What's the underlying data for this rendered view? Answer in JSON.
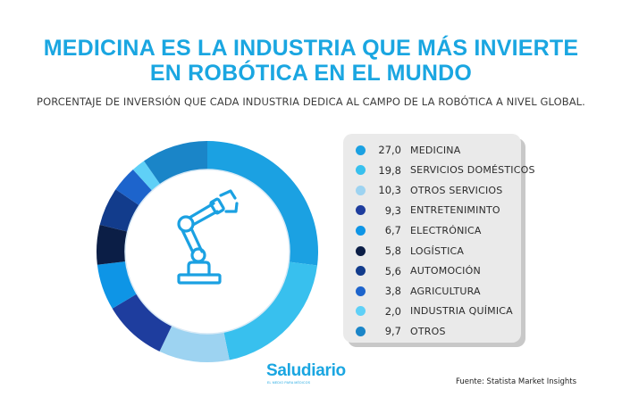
{
  "title_line1": "MEDICINA ES LA INDUSTRIA QUE MÁS INVIERTE",
  "title_line2": "EN ROBÓTICA EN EL MUNDO",
  "subtitle": "PORCENTAJE DE INVERSIÓN QUE CADA INDUSTRIA DEDICA AL CAMPO DE LA ROBÓTICA A NIVEL GLOBAL.",
  "brand": "Saludiario",
  "brand_tagline": "EL MEDIO PARA MÉDICOS",
  "source": "Fuente: Statista Market Insights",
  "center_icon": "robotic-arm-icon",
  "chart_data": {
    "type": "pie",
    "donut": true,
    "title": "PORCENTAJE DE INVERSIÓN QUE CADA INDUSTRIA DEDICA AL CAMPO DE LA ROBÓTICA A NIVEL GLOBAL.",
    "legend_position": "right",
    "slices": [
      {
        "label": "MEDICINA",
        "value": 27.0,
        "display": "27,0",
        "color": "#1ba1e2"
      },
      {
        "label": "SERVICIOS DOMÉSTICOS",
        "value": 19.8,
        "display": "19,8",
        "color": "#38c0ee"
      },
      {
        "label": "OTROS SERVICIOS",
        "value": 10.3,
        "display": "10,3",
        "color": "#9dd3f1"
      },
      {
        "label": "ENTRETENIMINTO",
        "value": 9.3,
        "display": "9,3",
        "color": "#1e3d9e"
      },
      {
        "label": "ELECTRÓNICA",
        "value": 6.7,
        "display": "6,7",
        "color": "#0e95e6"
      },
      {
        "label": "LOGÍSTICA",
        "value": 5.8,
        "display": "5,8",
        "color": "#0b1e46"
      },
      {
        "label": "AUTOMOCIÓN",
        "value": 5.6,
        "display": "5,6",
        "color": "#123c8c"
      },
      {
        "label": "AGRICULTURA",
        "value": 3.8,
        "display": "3,8",
        "color": "#1d64cc"
      },
      {
        "label": "INDUSTRIA QUÍMICA",
        "value": 2.0,
        "display": "2,0",
        "color": "#5fd0f7"
      },
      {
        "label": "OTROS",
        "value": 9.7,
        "display": "9,7",
        "color": "#1a85c8"
      }
    ]
  }
}
